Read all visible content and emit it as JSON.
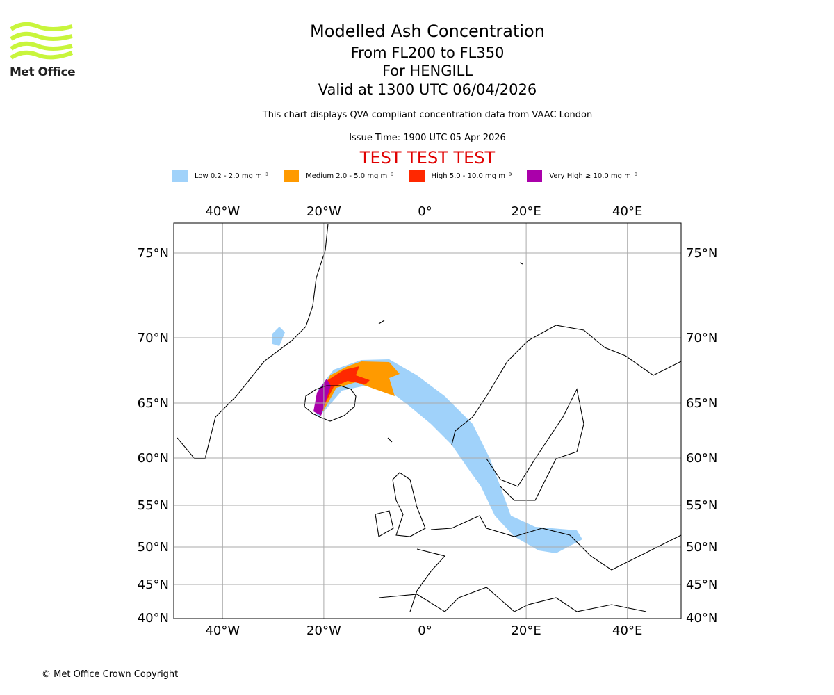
{
  "logo": {
    "text": "Met Office"
  },
  "header": {
    "title": "Modelled Ash Concentration",
    "levels": "From FL200 to FL350",
    "volcano": "For HENGILL",
    "valid": "Valid at 1300 UTC 06/04/2026",
    "subtitle": "This chart displays QVA compliant concentration data from VAAC London",
    "issue": "Issue Time: 1900 UTC 05 Apr 2026",
    "test": "TEST TEST TEST"
  },
  "legend": [
    {
      "label": "Low 0.2 - 2.0 mg m⁻³",
      "color": "#a0d2fa"
    },
    {
      "label": "Medium 2.0 - 5.0 mg m⁻³",
      "color": "#ff9a00"
    },
    {
      "label": "High 5.0 - 10.0 mg m⁻³",
      "color": "#ff2800"
    },
    {
      "label": "Very High ≥ 10.0 mg m⁻³",
      "color": "#aa00aa"
    }
  ],
  "map": {
    "lon_ticks": [
      {
        "v": -40,
        "label": "40°W"
      },
      {
        "v": -20,
        "label": "20°W"
      },
      {
        "v": 0,
        "label": "0°"
      },
      {
        "v": 20,
        "label": "20°E"
      },
      {
        "v": 40,
        "label": "40°E"
      }
    ],
    "lat_ticks": [
      {
        "v": 75,
        "label": "75°N"
      },
      {
        "v": 70,
        "label": "70°N"
      },
      {
        "v": 65,
        "label": "65°N"
      },
      {
        "v": 60,
        "label": "60°N"
      },
      {
        "v": 55,
        "label": "55°N"
      },
      {
        "v": 50,
        "label": "50°N"
      },
      {
        "v": 45,
        "label": "45°N"
      },
      {
        "v": 40,
        "label": "40°N"
      }
    ]
  },
  "footer": {
    "copyright": "© Met Office Crown Copyright"
  }
}
